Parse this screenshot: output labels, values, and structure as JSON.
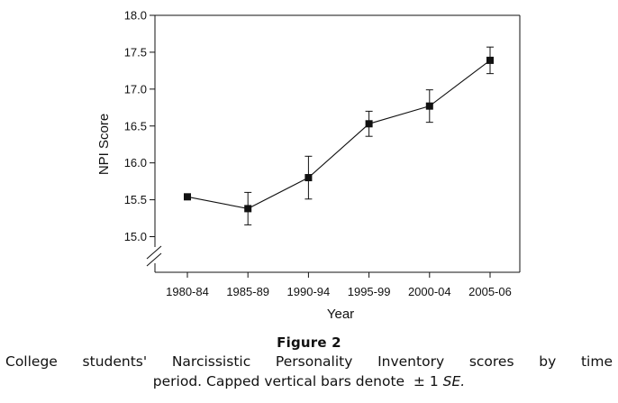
{
  "chart_data": {
    "type": "line",
    "title": "",
    "xlabel": "Year",
    "ylabel": "NPI Score",
    "categories": [
      "1980-84",
      "1985-89",
      "1990-94",
      "1995-99",
      "2000-04",
      "2005-06"
    ],
    "series": [
      {
        "values": [
          15.54,
          15.38,
          15.8,
          16.53,
          16.77,
          17.39
        ],
        "error_bars": [
          0.0,
          0.22,
          0.29,
          0.17,
          0.22,
          0.18
        ]
      }
    ],
    "ylim": [
      15.0,
      18.0
    ],
    "yticks": [
      "15.0",
      "15.5",
      "16.0",
      "16.5",
      "17.0",
      "17.5",
      "18.0"
    ],
    "y_axis_break": true,
    "grid": false,
    "legend": "none",
    "marker": "square",
    "colors": {
      "line": "#111111",
      "marker": "#111111",
      "axis": "#111111"
    }
  },
  "caption": {
    "figure_label": "Figure 2",
    "line1": "College students' Narcissistic Personality Inventory scores by time",
    "line2_prefix": "period. Capped vertical bars denote",
    "line2_pm": "± 1",
    "line2_se": "SE."
  }
}
